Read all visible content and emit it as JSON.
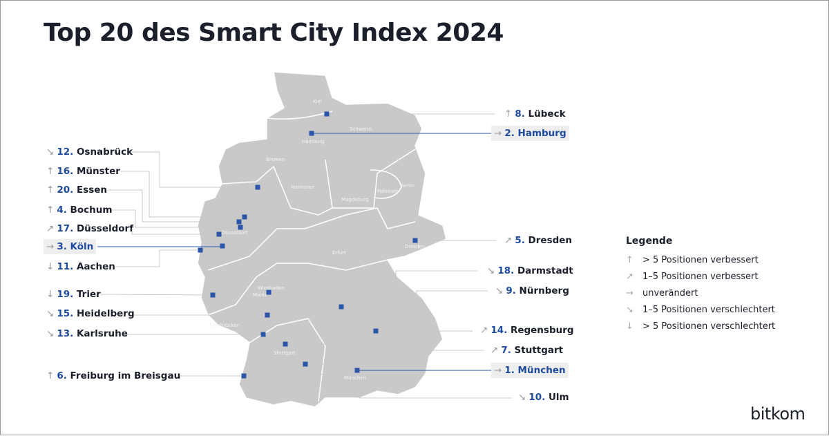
{
  "title": "Top 20 des Smart City Index 2024",
  "colors": {
    "land": "#c9c9c9",
    "border": "#ffffff",
    "marker": "#2a55a8",
    "rank": "#1d4a9e",
    "text": "#1a1f2b",
    "highlight_bg": "#eeeeee"
  },
  "map_labels": [
    "Kiel",
    "Schwerin",
    "Hamburg",
    "Bremen",
    "Hannover",
    "Berlin",
    "Potsdam",
    "Magdeburg",
    "Düsseldorf",
    "Erfurt",
    "Dresden",
    "Wiesbaden",
    "Mainz",
    "Saarbrücken",
    "Stuttgart",
    "München"
  ],
  "cities": [
    {
      "rank": "8.",
      "name": "Lübeck",
      "trend": "up",
      "highlight": false
    },
    {
      "rank": "2.",
      "name": "Hamburg",
      "trend": "same",
      "highlight": true
    },
    {
      "rank": "12.",
      "name": "Osnabrück",
      "trend": "down-slight",
      "highlight": false
    },
    {
      "rank": "16.",
      "name": "Münster",
      "trend": "up",
      "highlight": false
    },
    {
      "rank": "20.",
      "name": "Essen",
      "trend": "up",
      "highlight": false
    },
    {
      "rank": "4.",
      "name": "Bochum",
      "trend": "up",
      "highlight": false
    },
    {
      "rank": "17.",
      "name": "Düsseldorf",
      "trend": "up-slight",
      "highlight": false
    },
    {
      "rank": "3.",
      "name": "Köln",
      "trend": "same",
      "highlight": true
    },
    {
      "rank": "11.",
      "name": "Aachen",
      "trend": "down",
      "highlight": false
    },
    {
      "rank": "19.",
      "name": "Trier",
      "trend": "down",
      "highlight": false
    },
    {
      "rank": "15.",
      "name": "Heidelberg",
      "trend": "down-slight",
      "highlight": false
    },
    {
      "rank": "13.",
      "name": "Karlsruhe",
      "trend": "down-slight",
      "highlight": false
    },
    {
      "rank": "6.",
      "name": "Freiburg im Breisgau",
      "trend": "up",
      "highlight": false
    },
    {
      "rank": "5.",
      "name": "Dresden",
      "trend": "up-slight",
      "highlight": false
    },
    {
      "rank": "18.",
      "name": "Darmstadt",
      "trend": "down-slight",
      "highlight": false
    },
    {
      "rank": "9.",
      "name": "Nürnberg",
      "trend": "down-slight",
      "highlight": false
    },
    {
      "rank": "14.",
      "name": "Regensburg",
      "trend": "up-slight",
      "highlight": false
    },
    {
      "rank": "7.",
      "name": "Stuttgart",
      "trend": "up-slight",
      "highlight": false
    },
    {
      "rank": "1.",
      "name": "München",
      "trend": "same",
      "highlight": true
    },
    {
      "rank": "10.",
      "name": "Ulm",
      "trend": "down-slight",
      "highlight": false
    }
  ],
  "trend_icons": {
    "up": "↑",
    "up-slight": "↗",
    "same": "→",
    "down-slight": "↘",
    "down": "↓"
  },
  "legend": {
    "title": "Legende",
    "items": [
      {
        "trend": "up",
        "label": "> 5 Positionen verbessert"
      },
      {
        "trend": "up-slight",
        "label": "1–5 Positionen verbessert"
      },
      {
        "trend": "same",
        "label": "unverändert"
      },
      {
        "trend": "down-slight",
        "label": "1–5 Positionen verschlechtert"
      },
      {
        "trend": "down",
        "label": "> 5 Positionen verschlechtert"
      }
    ]
  },
  "logo": "bitkom"
}
